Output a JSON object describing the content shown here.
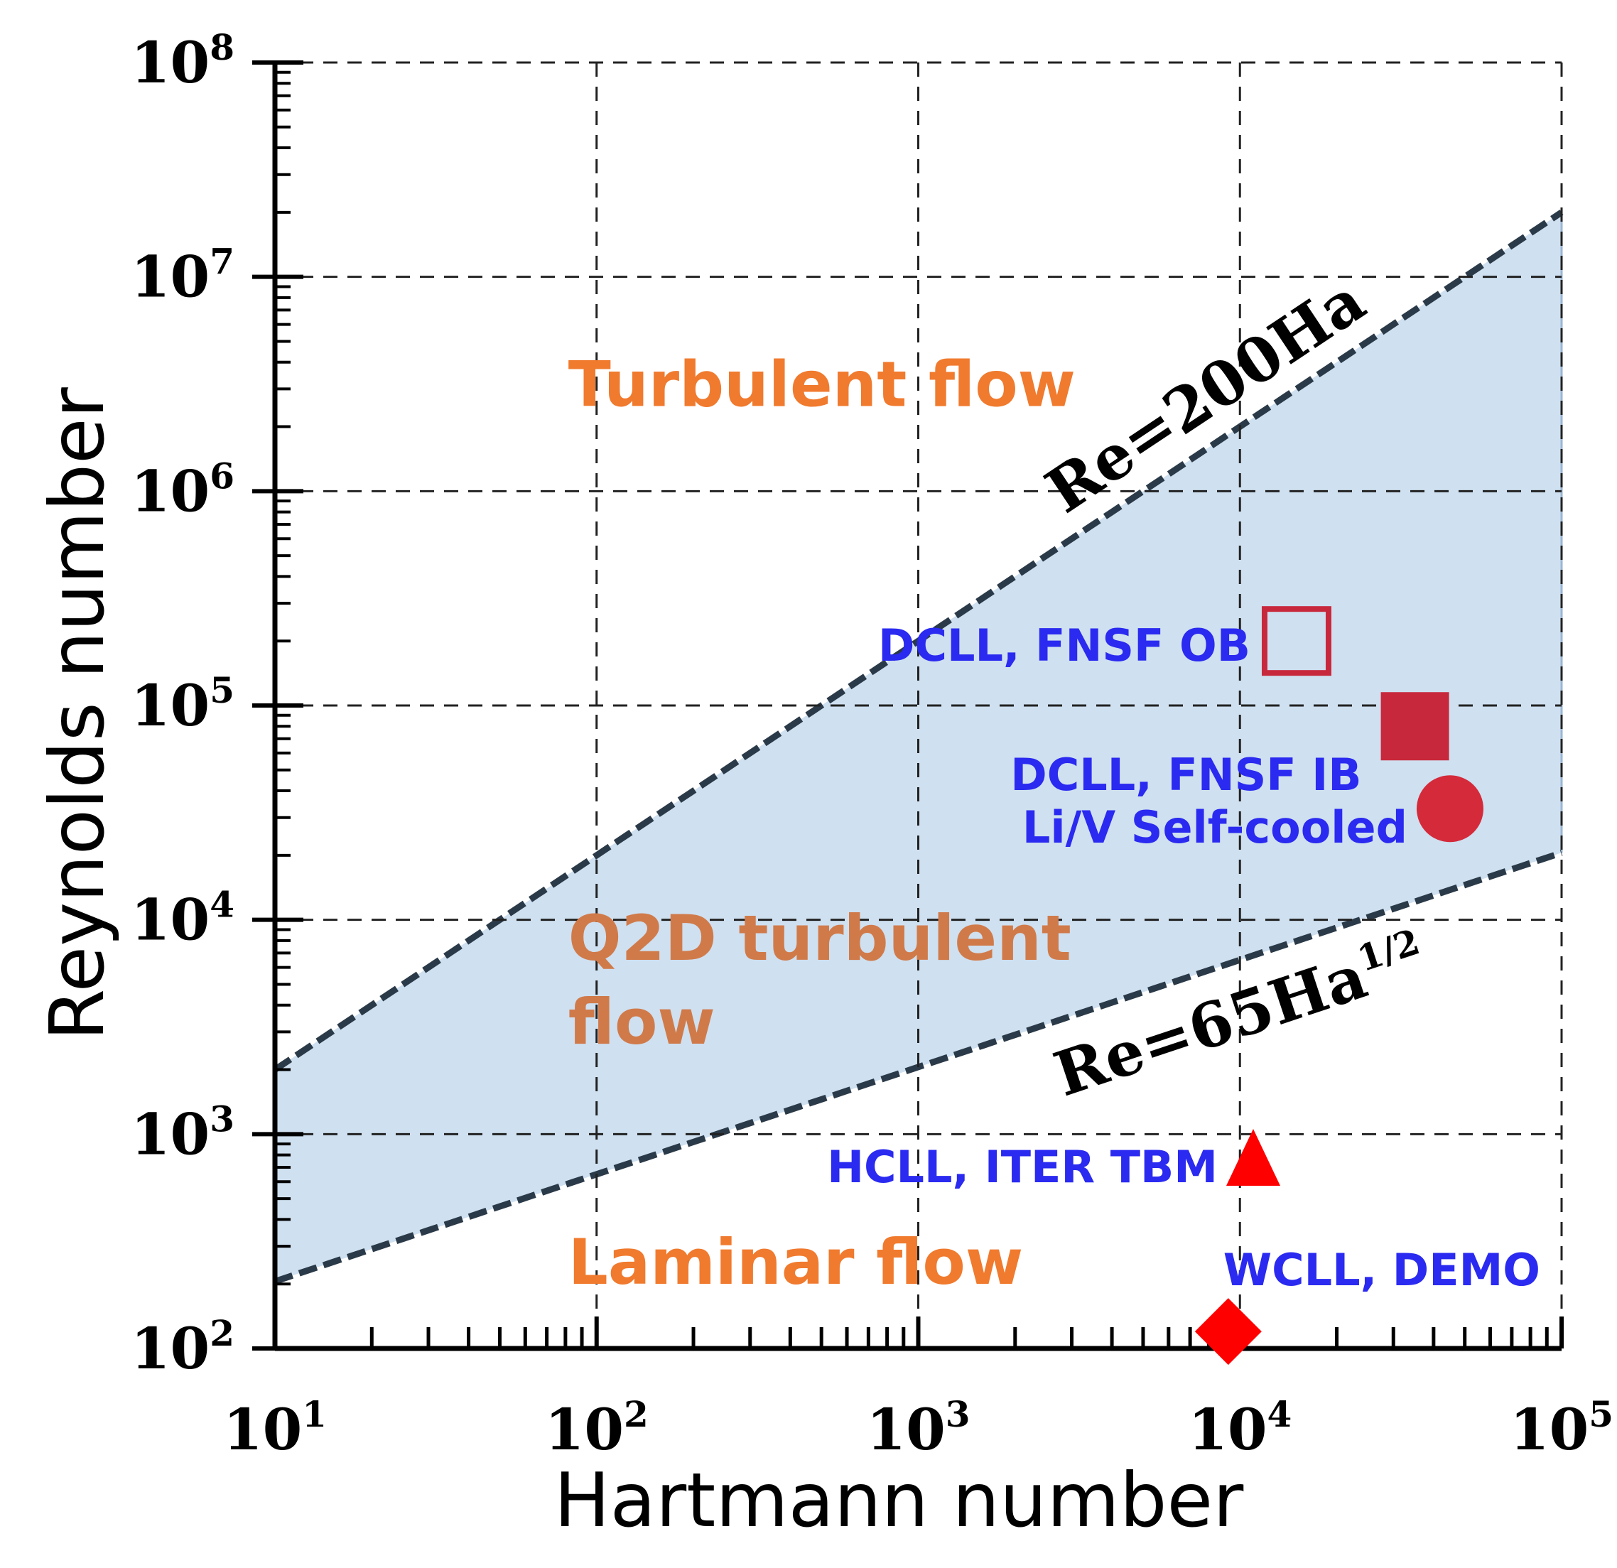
{
  "chart_data": {
    "type": "scatter",
    "xscale": "log",
    "yscale": "log",
    "xlim": [
      10,
      100000
    ],
    "ylim": [
      100,
      100000000
    ],
    "xlabel": "Hartmann number",
    "ylabel": "Reynolds number",
    "grid": true,
    "x_ticks": [
      {
        "base": "10",
        "exp": "1"
      },
      {
        "base": "10",
        "exp": "2"
      },
      {
        "base": "10",
        "exp": "3"
      },
      {
        "base": "10",
        "exp": "4"
      },
      {
        "base": "10",
        "exp": "5"
      }
    ],
    "y_ticks": [
      {
        "base": "10",
        "exp": "2"
      },
      {
        "base": "10",
        "exp": "3"
      },
      {
        "base": "10",
        "exp": "4"
      },
      {
        "base": "10",
        "exp": "5"
      },
      {
        "base": "10",
        "exp": "6"
      },
      {
        "base": "10",
        "exp": "7"
      },
      {
        "base": "10",
        "exp": "8"
      }
    ],
    "band": {
      "fill_color": "#cfe0f0",
      "upper": {
        "name": "Re=200Ha",
        "label_main": "Re=200Ha",
        "coef": 200,
        "exponent": 1
      },
      "lower": {
        "name": "Re=65Ha^1/2",
        "label_main": "Re=65Ha",
        "label_sup": "1/2",
        "coef": 65,
        "exponent": 0.5
      }
    },
    "regions": [
      {
        "name": "turbulent",
        "lines": [
          "Turbulent flow"
        ],
        "color": "#f07a2e",
        "at": [
          100,
          2500000
        ]
      },
      {
        "name": "q2d",
        "lines": [
          "Q2D turbulent",
          "flow"
        ],
        "color": "#d07a4a",
        "at": [
          100,
          6500
        ]
      },
      {
        "name": "laminar",
        "lines": [
          "Laminar flow"
        ],
        "color": "#f07a2e",
        "at": [
          100,
          200
        ]
      }
    ],
    "series": [
      {
        "name": "DCLL, FNSF OB",
        "x": 15000,
        "y": 200000,
        "marker": "square-open",
        "color": "#c8283c"
      },
      {
        "name": "DCLL, FNSF IB",
        "x": 35000,
        "y": 80000,
        "marker": "square",
        "color": "#c8283c"
      },
      {
        "name": "Li/V Self-cooled",
        "x": 45000,
        "y": 33000,
        "marker": "circle",
        "color": "#d42a3a"
      },
      {
        "name": "HCLL, ITER TBM",
        "x": 11000,
        "y": 750,
        "marker": "triangle",
        "color": "#ff0000"
      },
      {
        "name": "WCLL, DEMO",
        "x": 9200,
        "y": 120,
        "marker": "diamond",
        "color": "#ff0000"
      }
    ],
    "label_color": "#2a2af0"
  }
}
